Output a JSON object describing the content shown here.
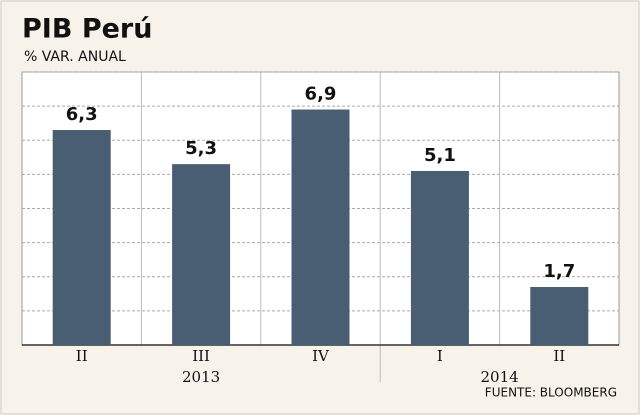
{
  "chart_data": {
    "type": "bar",
    "title": "PIB Perú",
    "subtitle": "% VAR. ANUAL",
    "categories": [
      "II",
      "III",
      "IV",
      "I",
      "II"
    ],
    "years": [
      "2013",
      "2013",
      "2013",
      "2014",
      "2014"
    ],
    "values": [
      6.3,
      5.3,
      6.9,
      5.1,
      1.7
    ],
    "value_labels": [
      "6,3",
      "5,3",
      "6,9",
      "5,1",
      "1,7"
    ],
    "color": "#4a5e73",
    "ylim": [
      0,
      8
    ],
    "yticks": [
      0,
      1,
      2,
      3,
      4,
      5,
      6,
      7,
      8
    ],
    "grid": true,
    "source": "FUENTE: BLOOMBERG"
  }
}
